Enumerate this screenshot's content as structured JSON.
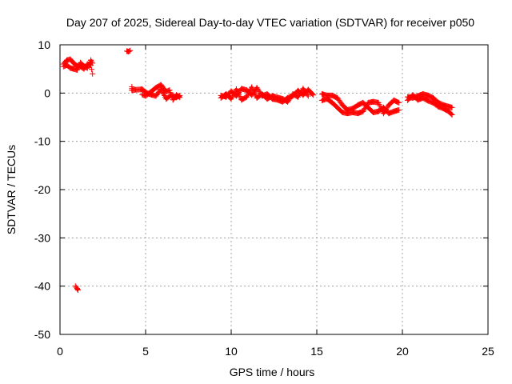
{
  "chart_data": {
    "type": "scatter",
    "title": "Day 207 of 2025, Sidereal Day-to-day VTEC variation (SDTVAR) for receiver p050",
    "xlabel": "GPS time / hours",
    "ylabel": "SDTVAR / TECUs",
    "xlim": [
      0,
      25
    ],
    "ylim": [
      -50,
      10
    ],
    "xticks": [
      0,
      5,
      10,
      15,
      20,
      25
    ],
    "yticks": [
      -50,
      -40,
      -30,
      -20,
      -10,
      0,
      10
    ],
    "grid": true,
    "marker": "+",
    "color": "#ff0000",
    "series": [
      {
        "name": "p050",
        "segments": [
          [
            [
              0.2,
              6.0
            ],
            [
              0.4,
              6.8
            ],
            [
              0.6,
              7.0
            ],
            [
              0.8,
              6.2
            ],
            [
              1.0,
              5.6
            ],
            [
              1.2,
              5.5
            ],
            [
              1.4,
              5.0
            ],
            [
              1.6,
              6.0
            ],
            [
              1.8,
              5.8
            ],
            [
              1.9,
              4.0
            ]
          ],
          [
            [
              0.2,
              5.5
            ],
            [
              0.4,
              5.8
            ],
            [
              0.6,
              5.2
            ],
            [
              0.8,
              5.0
            ],
            [
              1.0,
              4.8
            ],
            [
              1.2,
              6.3
            ],
            [
              1.4,
              5.5
            ],
            [
              1.6,
              5.2
            ],
            [
              1.8,
              6.8
            ],
            [
              1.9,
              6.2
            ]
          ],
          [
            [
              0.9,
              -40.0
            ],
            [
              1.0,
              -40.5
            ],
            [
              1.05,
              -40.8
            ]
          ],
          [
            [
              3.9,
              8.7
            ],
            [
              4.0,
              8.6
            ],
            [
              4.1,
              8.8
            ]
          ],
          [
            [
              4.2,
              1.3
            ],
            [
              4.2,
              0.6
            ],
            [
              4.8,
              0.8
            ],
            [
              5.0,
              0.2
            ],
            [
              5.2,
              -0.2
            ],
            [
              5.6,
              -0.6
            ],
            [
              5.9,
              0.8
            ],
            [
              6.2,
              -1.2
            ],
            [
              6.5,
              -0.4
            ],
            [
              6.8,
              -0.9
            ],
            [
              7.0,
              -0.5
            ]
          ],
          [
            [
              4.8,
              -0.3
            ],
            [
              5.0,
              -0.6
            ],
            [
              5.6,
              1.1
            ],
            [
              5.9,
              1.7
            ],
            [
              6.2,
              0.3
            ],
            [
              6.4,
              0.6
            ],
            [
              6.6,
              -1.4
            ],
            [
              6.8,
              -0.4
            ],
            [
              7.0,
              -0.9
            ]
          ],
          [
            [
              9.4,
              -0.5
            ],
            [
              9.7,
              -0.8
            ],
            [
              10.0,
              0.4
            ],
            [
              10.3,
              -0.6
            ],
            [
              10.6,
              0.9
            ],
            [
              10.9,
              0.6
            ],
            [
              11.2,
              -0.4
            ],
            [
              11.5,
              1.1
            ],
            [
              11.8,
              -0.6
            ],
            [
              12.1,
              -0.2
            ],
            [
              12.4,
              -1.2
            ],
            [
              12.7,
              -1.4
            ],
            [
              13.0,
              -1.8
            ],
            [
              13.3,
              -1.0
            ],
            [
              13.6,
              -0.6
            ],
            [
              13.9,
              0.5
            ],
            [
              14.2,
              -0.4
            ],
            [
              14.5,
              0.7
            ],
            [
              14.8,
              -0.4
            ]
          ],
          [
            [
              9.4,
              -1.0
            ],
            [
              9.7,
              -0.2
            ],
            [
              10.0,
              -1.2
            ],
            [
              10.3,
              0.8
            ],
            [
              10.6,
              -1.4
            ],
            [
              10.9,
              -0.8
            ],
            [
              11.2,
              1.2
            ],
            [
              11.5,
              -1.0
            ],
            [
              11.8,
              -0.2
            ],
            [
              12.1,
              -1.2
            ],
            [
              12.4,
              -0.6
            ],
            [
              12.7,
              -0.9
            ],
            [
              13.0,
              -1.2
            ],
            [
              13.3,
              -1.8
            ],
            [
              13.6,
              -0.2
            ],
            [
              13.9,
              -0.8
            ],
            [
              14.2,
              0.9
            ],
            [
              14.5,
              -0.6
            ]
          ],
          [
            [
              15.3,
              -0.2
            ],
            [
              15.6,
              -0.5
            ],
            [
              15.9,
              -0.5
            ],
            [
              16.2,
              -1.0
            ],
            [
              16.5,
              -2.5
            ],
            [
              16.8,
              -3.5
            ],
            [
              17.1,
              -3.2
            ],
            [
              17.4,
              -2.5
            ],
            [
              17.7,
              -2.0
            ],
            [
              18.0,
              -3.0
            ],
            [
              18.3,
              -4.0
            ],
            [
              18.6,
              -3.8
            ],
            [
              18.9,
              -3.0
            ],
            [
              19.2,
              -4.2
            ],
            [
              19.5,
              -3.8
            ],
            [
              19.8,
              -3.5
            ]
          ],
          [
            [
              15.3,
              -1.5
            ],
            [
              15.6,
              -1.2
            ],
            [
              15.9,
              -2.0
            ],
            [
              16.2,
              -3.0
            ],
            [
              16.5,
              -4.0
            ],
            [
              16.8,
              -4.2
            ],
            [
              17.1,
              -4.0
            ],
            [
              17.4,
              -4.2
            ],
            [
              17.7,
              -3.8
            ],
            [
              18.0,
              -2.0
            ],
            [
              18.3,
              -1.8
            ],
            [
              18.6,
              -2.0
            ],
            [
              18.9,
              -4.2
            ],
            [
              19.2,
              -2.5
            ],
            [
              19.5,
              -1.5
            ],
            [
              19.8,
              -2.0
            ]
          ],
          [
            [
              20.3,
              -0.8
            ],
            [
              20.6,
              -1.0
            ],
            [
              20.9,
              -0.6
            ],
            [
              21.2,
              -0.2
            ],
            [
              21.5,
              -0.5
            ],
            [
              21.8,
              -1.0
            ],
            [
              22.1,
              -2.0
            ],
            [
              22.4,
              -2.5
            ],
            [
              22.7,
              -2.8
            ],
            [
              22.9,
              -3.0
            ]
          ],
          [
            [
              20.3,
              -1.5
            ],
            [
              20.6,
              -0.4
            ],
            [
              20.9,
              -1.4
            ],
            [
              21.2,
              -1.0
            ],
            [
              21.5,
              -1.6
            ],
            [
              21.8,
              -2.0
            ],
            [
              22.1,
              -2.8
            ],
            [
              22.4,
              -3.2
            ],
            [
              22.7,
              -3.8
            ],
            [
              22.9,
              -4.5
            ]
          ]
        ]
      }
    ]
  }
}
